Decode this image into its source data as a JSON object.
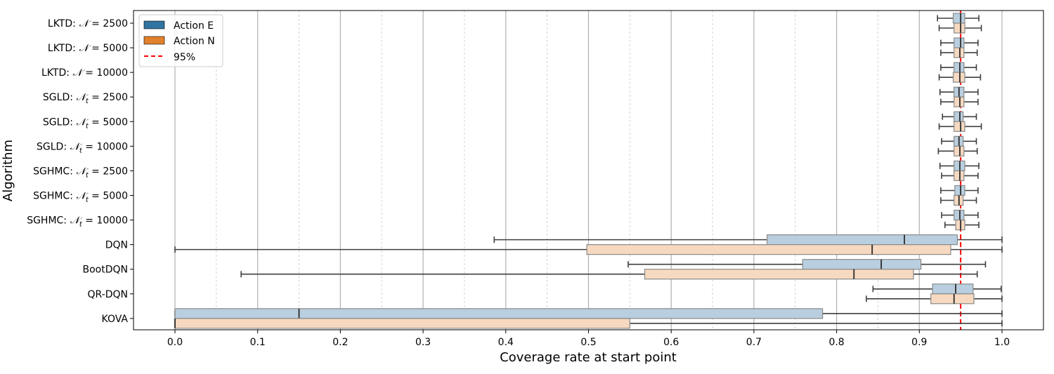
{
  "chart_data": {
    "type": "box",
    "orientation": "horizontal",
    "xlabel": "Coverage rate at start point",
    "ylabel": "Algorithm",
    "xlim": [
      -0.05,
      1.05
    ],
    "xticks": [
      0.0,
      0.1,
      0.2,
      0.3,
      0.4,
      0.5,
      0.6,
      0.7,
      0.8,
      0.9,
      1.0
    ],
    "xtick_labels": [
      "0.0",
      "0.1",
      "0.2",
      "0.3",
      "0.4",
      "0.5",
      "0.6",
      "0.7",
      "0.8",
      "0.9",
      "1.0"
    ],
    "grid": {
      "major_x": true,
      "minor_x": true,
      "minor_style": "dashed"
    },
    "reference_line": {
      "x": 0.95,
      "label": "95%",
      "color": "#ff0000",
      "style": "dashed"
    },
    "legend": {
      "placement": "upper-left",
      "entries": [
        {
          "label": "Action E",
          "color": "#3274a1"
        },
        {
          "label": "Action N",
          "color": "#e1812c"
        },
        {
          "label": "95%",
          "color": "#ff0000",
          "style": "dashed"
        }
      ]
    },
    "series_colors": {
      "Action E": "#b9cfe0",
      "Action N": "#f6d9c0"
    },
    "categories": [
      {
        "parts": [
          "LKTD: ",
          "𝒩",
          " = 2500"
        ]
      },
      {
        "parts": [
          "LKTD: ",
          "𝒩",
          " = 5000"
        ]
      },
      {
        "parts": [
          "LKTD: ",
          "𝒩",
          " = 10000"
        ]
      },
      {
        "parts": [
          "SGLD: ",
          "𝒩",
          "t",
          " = 2500"
        ]
      },
      {
        "parts": [
          "SGLD: ",
          "𝒩",
          "t",
          " = 5000"
        ]
      },
      {
        "parts": [
          "SGLD: ",
          "𝒩",
          "t",
          " = 10000"
        ]
      },
      {
        "parts": [
          "SGHMC: ",
          "𝒩",
          "t",
          " = 2500"
        ]
      },
      {
        "parts": [
          "SGHMC: ",
          "𝒩",
          "t",
          " = 5000"
        ]
      },
      {
        "parts": [
          "SGHMC: ",
          "𝒩",
          "t",
          " = 10000"
        ]
      },
      {
        "parts": [
          "DQN"
        ]
      },
      {
        "parts": [
          "BootDQN"
        ]
      },
      {
        "parts": [
          "QR-DQN"
        ]
      },
      {
        "parts": [
          "KOVA"
        ]
      }
    ],
    "series": [
      {
        "name": "Action E",
        "boxes": [
          {
            "whislo": 0.922,
            "q1": 0.941,
            "med": 0.95,
            "q3": 0.955,
            "whishi": 0.972
          },
          {
            "whislo": 0.926,
            "q1": 0.942,
            "med": 0.95,
            "q3": 0.954,
            "whishi": 0.971
          },
          {
            "whislo": 0.926,
            "q1": 0.942,
            "med": 0.949,
            "q3": 0.954,
            "whishi": 0.969
          },
          {
            "whislo": 0.925,
            "q1": 0.942,
            "med": 0.948,
            "q3": 0.954,
            "whishi": 0.971
          },
          {
            "whislo": 0.928,
            "q1": 0.942,
            "med": 0.949,
            "q3": 0.953,
            "whishi": 0.969
          },
          {
            "whislo": 0.927,
            "q1": 0.942,
            "med": 0.948,
            "q3": 0.953,
            "whishi": 0.969
          },
          {
            "whislo": 0.925,
            "q1": 0.942,
            "med": 0.949,
            "q3": 0.955,
            "whishi": 0.972
          },
          {
            "whislo": 0.926,
            "q1": 0.943,
            "med": 0.95,
            "q3": 0.955,
            "whishi": 0.971
          },
          {
            "whislo": 0.927,
            "q1": 0.942,
            "med": 0.949,
            "q3": 0.954,
            "whishi": 0.971
          },
          {
            "whislo": 0.386,
            "q1": 0.716,
            "med": 0.882,
            "q3": 0.946,
            "whishi": 1.0
          },
          {
            "whislo": 0.548,
            "q1": 0.759,
            "med": 0.854,
            "q3": 0.902,
            "whishi": 0.98
          },
          {
            "whislo": 0.844,
            "q1": 0.916,
            "med": 0.944,
            "q3": 0.965,
            "whishi": 0.999
          },
          {
            "whislo": 0.0,
            "q1": 0.0,
            "med": 0.15,
            "q3": 0.783,
            "whishi": 1.0
          }
        ]
      },
      {
        "name": "Action N",
        "boxes": [
          {
            "whislo": 0.924,
            "q1": 0.942,
            "med": 0.95,
            "q3": 0.955,
            "whishi": 0.975
          },
          {
            "whislo": 0.926,
            "q1": 0.942,
            "med": 0.949,
            "q3": 0.954,
            "whishi": 0.97
          },
          {
            "whislo": 0.924,
            "q1": 0.941,
            "med": 0.949,
            "q3": 0.955,
            "whishi": 0.974
          },
          {
            "whislo": 0.926,
            "q1": 0.942,
            "med": 0.949,
            "q3": 0.954,
            "whishi": 0.971
          },
          {
            "whislo": 0.924,
            "q1": 0.942,
            "med": 0.95,
            "q3": 0.955,
            "whishi": 0.975
          },
          {
            "whislo": 0.923,
            "q1": 0.942,
            "med": 0.949,
            "q3": 0.954,
            "whishi": 0.97
          },
          {
            "whislo": 0.927,
            "q1": 0.942,
            "med": 0.949,
            "q3": 0.954,
            "whishi": 0.971
          },
          {
            "whislo": 0.926,
            "q1": 0.942,
            "med": 0.948,
            "q3": 0.953,
            "whishi": 0.969
          },
          {
            "whislo": 0.931,
            "q1": 0.944,
            "med": 0.95,
            "q3": 0.955,
            "whishi": 0.972
          },
          {
            "whislo": 0.0,
            "q1": 0.498,
            "med": 0.843,
            "q3": 0.938,
            "whishi": 1.0
          },
          {
            "whislo": 0.08,
            "q1": 0.568,
            "med": 0.821,
            "q3": 0.893,
            "whishi": 0.97
          },
          {
            "whislo": 0.836,
            "q1": 0.914,
            "med": 0.942,
            "q3": 0.966,
            "whishi": 1.0
          },
          {
            "whislo": 0.0,
            "q1": 0.0,
            "med": 0.0,
            "q3": 0.55,
            "whishi": 1.0
          }
        ]
      }
    ]
  }
}
